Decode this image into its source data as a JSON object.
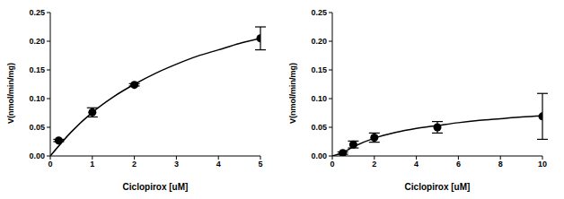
{
  "chart_data": [
    {
      "type": "scatter",
      "x_label": "Ciclopirox [uM]",
      "y_label": "V(nmol/min/mg)",
      "x": [
        0.2,
        1,
        2,
        5
      ],
      "values": [
        0.027,
        0.076,
        0.124,
        0.205
      ],
      "errors": [
        0.002,
        0.008,
        0.002,
        0.02
      ],
      "curve": {
        "x": [
          0,
          0.5,
          1,
          1.5,
          2,
          2.5,
          3,
          3.5,
          4,
          4.5,
          5
        ],
        "values": [
          0,
          0.042,
          0.076,
          0.103,
          0.125,
          0.144,
          0.16,
          0.174,
          0.185,
          0.196,
          0.205
        ]
      },
      "xlim": [
        0,
        5
      ],
      "xticks": [
        0,
        1,
        2,
        3,
        4,
        5
      ],
      "ylim": [
        0,
        0.25
      ],
      "yticks": [
        {
          "value": 0,
          "label": "0.00"
        },
        0.05,
        {
          "value": 0.1,
          "label": "0.10"
        },
        0.15,
        {
          "value": 0.2,
          "label": "0.20"
        },
        0.25
      ],
      "color": "#000000",
      "marker": "circle",
      "grid": false
    },
    {
      "type": "scatter",
      "x_label": "Ciclopirox [uM]",
      "y_label": "V(nmol/min/mg)",
      "x": [
        0.5,
        1,
        2,
        5,
        10
      ],
      "values": [
        0.005,
        0.02,
        0.032,
        0.05,
        0.069
      ],
      "errors": [
        0.002,
        0.006,
        0.008,
        0.01,
        0.04
      ],
      "curve": {
        "x": [
          0,
          0.5,
          1,
          2,
          3,
          4,
          5,
          6,
          7,
          8,
          9,
          10
        ],
        "values": [
          0,
          0.006,
          0.016,
          0.031,
          0.041,
          0.048,
          0.053,
          0.058,
          0.062,
          0.065,
          0.068,
          0.07
        ]
      },
      "xlim": [
        0,
        10
      ],
      "xticks": [
        0,
        2,
        4,
        6,
        8,
        10
      ],
      "ylim": [
        0,
        0.25
      ],
      "yticks": [
        {
          "value": 0,
          "label": "0.00"
        },
        0.05,
        {
          "value": 0.1,
          "label": "0.10"
        },
        0.15,
        {
          "value": 0.2,
          "label": "0.20"
        },
        0.25
      ],
      "color": "#000000",
      "marker": "circle",
      "grid": false
    }
  ]
}
